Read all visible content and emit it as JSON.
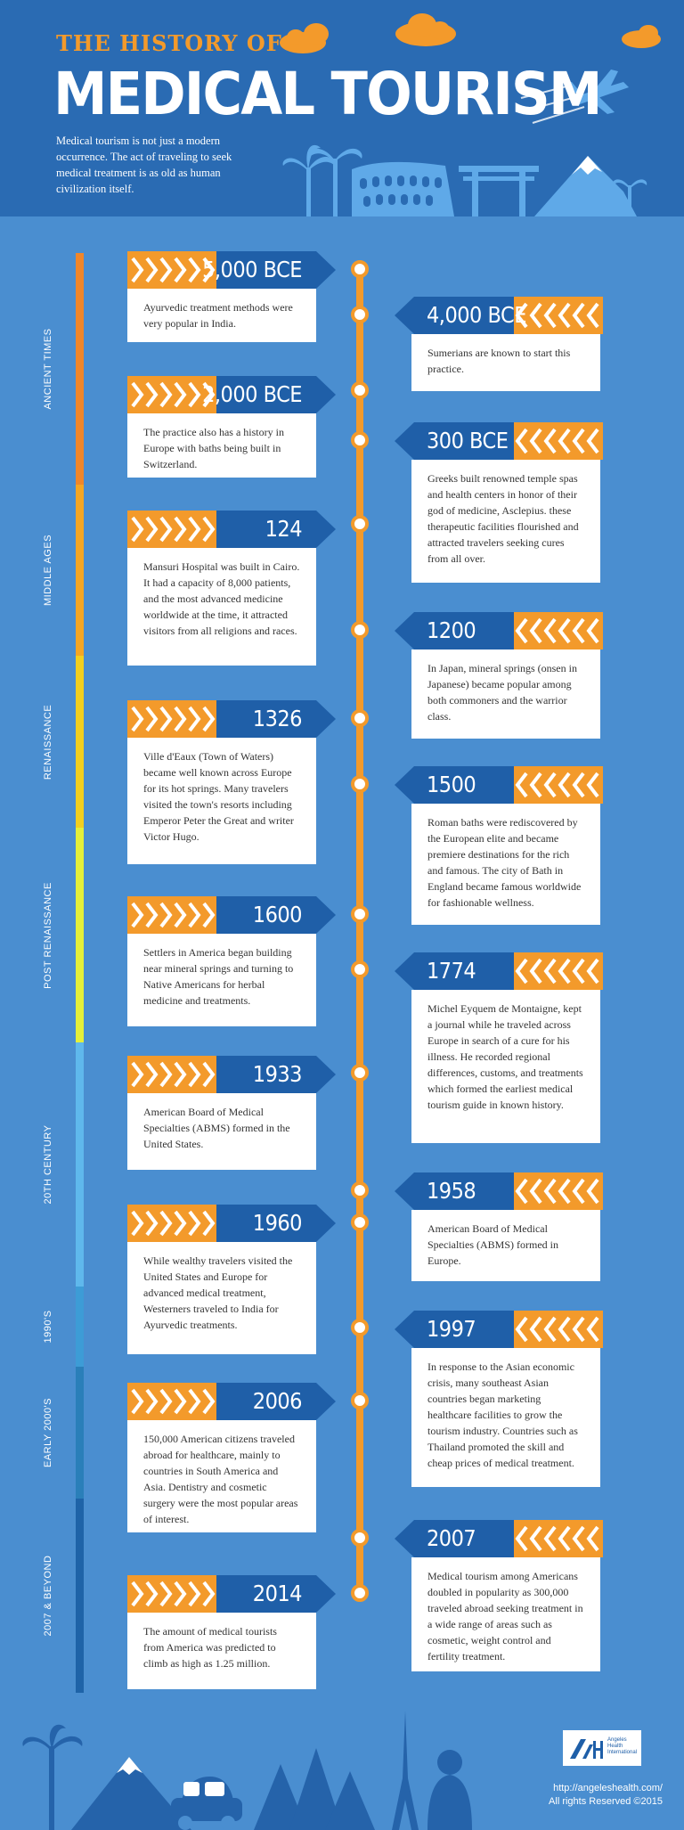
{
  "header": {
    "title_small": "THE HISTORY OF",
    "title_big": "MEDICAL TOURISM",
    "intro": "Medical tourism is not just a modern occurrence. The act of traveling to seek medical treatment is as old as human civilization itself."
  },
  "eras": [
    {
      "label": "ANCIENT TIMES",
      "color": "#f0862a"
    },
    {
      "label": "MIDDLE AGES",
      "color": "#f5a623"
    },
    {
      "label": "RENAISSANCE",
      "color": "#f2cf1f"
    },
    {
      "label": "POST RENAISSANCE",
      "color": "#e4ef3a"
    },
    {
      "label": "20TH CENTURY",
      "color": "#5fb8ec"
    },
    {
      "label": "1990'S",
      "color": "#3d9cd6"
    },
    {
      "label": "EARLY 2000'S",
      "color": "#2a7fb9"
    },
    {
      "label": "2007 & BEYOND",
      "color": "#1e63a8"
    }
  ],
  "events": [
    {
      "year": "5,000 BCE",
      "text": "Ayurvedic treatment methods were very popular in India.",
      "side": "left"
    },
    {
      "year": "4,000 BCE",
      "text": "Sumerians are known to start this practice.",
      "side": "right"
    },
    {
      "year": "2,000 BCE",
      "text": "The practice also has a history in Europe with baths being built in Switzerland.",
      "side": "left"
    },
    {
      "year": "300 BCE",
      "text": "Greeks built renowned temple spas and health centers in honor of their god of medicine, Asclepius. these therapeutic facilities flourished and attracted travelers seeking cures from all over.",
      "side": "right"
    },
    {
      "year": "124",
      "text": "Mansuri Hospital was built in Cairo. It had a capacity of 8,000 patients, and the most advanced medicine worldwide at the time, it attracted visitors from all religions and races.",
      "side": "left"
    },
    {
      "year": "1200",
      "text": "In Japan, mineral springs (onsen in Japanese) became popular among both commoners and the warrior class.",
      "side": "right"
    },
    {
      "year": "1326",
      "text": "Ville d'Eaux (Town of Waters) became well known across Europe for its hot springs. Many travelers visited the town's resorts including Emperor Peter the Great and writer Victor Hugo.",
      "side": "left"
    },
    {
      "year": "1500",
      "text": "Roman baths were rediscovered by the European elite and became premiere destinations for the rich and famous. The city of Bath in England became famous worldwide for fashionable wellness.",
      "side": "right"
    },
    {
      "year": "1600",
      "text": "Settlers in America began building near mineral springs and turning to Native Americans for herbal medicine and treatments.",
      "side": "left"
    },
    {
      "year": "1774",
      "text": "Michel Eyquem de Montaigne, kept a journal while he traveled across Europe in search of a cure for his illness. He recorded regional differences, customs, and treatments which formed the earliest medical tourism guide in known history.",
      "side": "right"
    },
    {
      "year": "1933",
      "text": "American Board of Medical Specialties (ABMS) formed in the United States.",
      "side": "left"
    },
    {
      "year": "1958",
      "text": "American Board of Medical Specialties (ABMS) formed in Europe.",
      "side": "right"
    },
    {
      "year": "1960",
      "text": "While wealthy travelers visited the United States and Europe for advanced medical treatment, Westerners traveled to India for Ayurvedic treatments.",
      "side": "left"
    },
    {
      "year": "1997",
      "text": "In response to the Asian  economic crisis, many southeast Asian countries began marketing healthcare facilities to grow the tourism industry. Countries such as Thailand promoted the skill and cheap prices of medical treatment.",
      "side": "right"
    },
    {
      "year": "2006",
      "text": "150,000 American citizens traveled abroad for healthcare, mainly to countries in South America and Asia. Dentistry and cosmetic surgery were the most popular areas of interest.",
      "side": "left"
    },
    {
      "year": "2007",
      "text": "Medical tourism among Americans doubled in popularity as 300,000 traveled abroad seeking treatment in a wide range of areas such as cosmetic, weight control and fertility treatment.",
      "side": "right"
    },
    {
      "year": "2014",
      "text": "The amount of medical tourists from America was predicted to climb as high as 1.25 million.",
      "side": "left"
    }
  ],
  "footer": {
    "logo_text": "Angeles Health International",
    "url": "http://angeleshealth.com/",
    "rights": "All rights Reserved ©2015"
  },
  "colors": {
    "header_bg": "#2a6bb3",
    "body_bg": "#4a8ed0",
    "accent_orange": "#f39a2b",
    "banner_blue": "#1f5fa8"
  }
}
